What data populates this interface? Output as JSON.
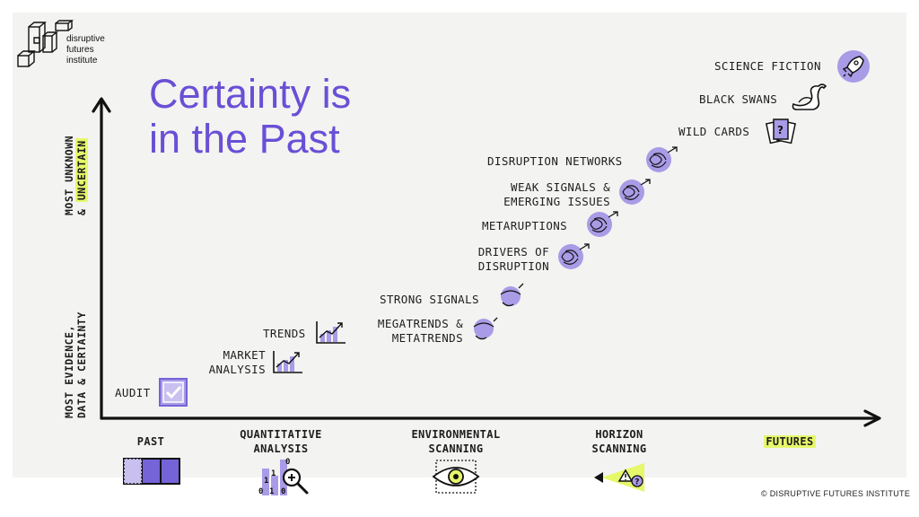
{
  "brand": {
    "logo_lines": [
      "disruptive",
      "futures",
      "institute"
    ]
  },
  "title": {
    "line1": "Certainty is",
    "line2": "in the Past"
  },
  "y_axis": {
    "top": {
      "line1": "MOST UNKNOWN",
      "line2_prefix": "& ",
      "line2_highlight": "UNCERTAIN"
    },
    "bottom": {
      "line1": "MOST EVIDENCE,",
      "line2": "DATA & CERTAINTY"
    }
  },
  "x_axis": {
    "past": "PAST",
    "quant": [
      "QUANTITATIVE",
      "ANALYSIS"
    ],
    "env": [
      "ENVIRONMENTAL",
      "SCANNING"
    ],
    "horizon": [
      "HORIZON",
      "SCANNING"
    ],
    "futures": "FUTURES"
  },
  "items": {
    "audit": "AUDIT",
    "market": [
      "MARKET",
      "ANALYSIS"
    ],
    "trends": "TRENDS",
    "megatrends": [
      "MEGATRENDS &",
      "METATRENDS"
    ],
    "strong": "STRONG SIGNALS",
    "drivers": [
      "DRIVERS OF",
      "DISRUPTION"
    ],
    "metaruptions": "METARUPTIONS",
    "weak": [
      "WEAK SIGNALS &",
      "EMERGING ISSUES"
    ],
    "networks": "DISRUPTION NETWORKS",
    "wild": "WILD CARDS",
    "swans": "BLACK SWANS",
    "scifi": "SCIENCE FICTION"
  },
  "icon_text": {
    "binary": [
      "0",
      "1",
      "1",
      "0",
      "1",
      "0"
    ],
    "question_mark": "?"
  },
  "copyright": "© DISRUPTIVE FUTURES INSTITUTE",
  "colors": {
    "accent": "#6a4fd6",
    "highlight": "#e6f76a",
    "icon_fill": "#a99be6",
    "background": "#f3f3f1"
  }
}
